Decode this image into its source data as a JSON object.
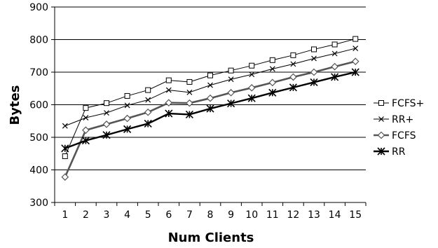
{
  "chart_data": {
    "type": "line",
    "title": "",
    "xlabel": "Num Clients",
    "ylabel": "Bytes",
    "categories": [
      "1",
      "2",
      "3",
      "4",
      "5",
      "6",
      "7",
      "8",
      "9",
      "10",
      "11",
      "12",
      "13",
      "14",
      "15"
    ],
    "ylim": [
      300,
      900
    ],
    "yticks": [
      "300",
      "400",
      "500",
      "600",
      "700",
      "800",
      "900"
    ],
    "grid": "horizontal",
    "legend_position": "right",
    "series": [
      {
        "name": "FCFS+",
        "marker": "square",
        "color": "#000000",
        "values": [
          442,
          590,
          605,
          627,
          645,
          675,
          670,
          690,
          705,
          720,
          737,
          752,
          770,
          785,
          802
        ]
      },
      {
        "name": "RR+",
        "marker": "x",
        "color": "#000000",
        "values": [
          535,
          560,
          575,
          598,
          615,
          645,
          638,
          660,
          678,
          693,
          710,
          725,
          742,
          757,
          773
        ]
      },
      {
        "name": "FCFS",
        "marker": "diamond",
        "color": "#555555",
        "values": [
          378,
          522,
          540,
          558,
          577,
          606,
          605,
          620,
          637,
          652,
          668,
          685,
          700,
          717,
          733
        ]
      },
      {
        "name": "RR",
        "marker": "star",
        "color": "#000000",
        "values": [
          466,
          490,
          507,
          525,
          542,
          573,
          570,
          588,
          604,
          620,
          637,
          653,
          669,
          685,
          700
        ]
      }
    ]
  }
}
